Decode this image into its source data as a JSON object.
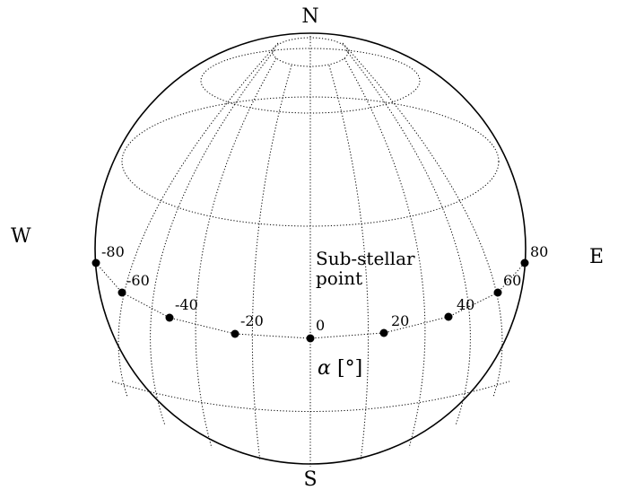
{
  "compass": {
    "north": "N",
    "south": "S",
    "west": "W",
    "east": "E"
  },
  "substellar_label": {
    "line1": "Sub-stellar",
    "line2": "point"
  },
  "axis_label": {
    "symbol": "α",
    "unit": "[°]"
  },
  "phase_points": [
    {
      "label": "-80",
      "value": -80
    },
    {
      "label": "-60",
      "value": -60
    },
    {
      "label": "-40",
      "value": -40
    },
    {
      "label": "-20",
      "value": -20
    },
    {
      "label": "0",
      "value": 0
    },
    {
      "label": "20",
      "value": 20
    },
    {
      "label": "40",
      "value": 40
    },
    {
      "label": "60",
      "value": 60
    },
    {
      "label": "80",
      "value": 80
    }
  ]
}
